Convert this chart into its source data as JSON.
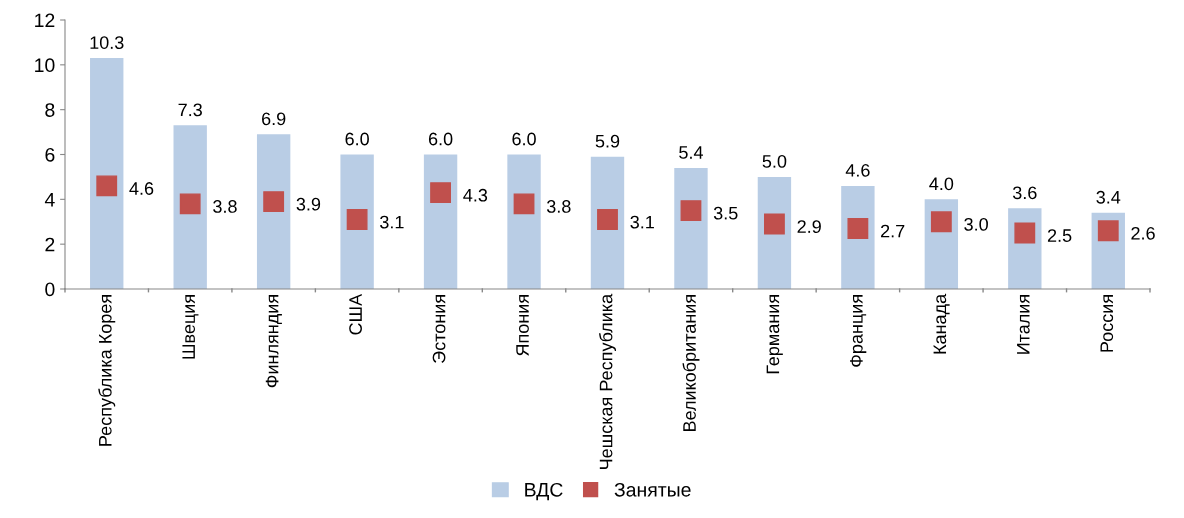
{
  "chart_data": {
    "type": "bar",
    "categories": [
      "Республика Корея",
      "Швеция",
      "Финляндия",
      "США",
      "Эстония",
      "Япония",
      "Чешская Республика",
      "Великобритания",
      "Германия",
      "Франция",
      "Канада",
      "Италия",
      "Россия"
    ],
    "series": [
      {
        "name": "ВДС",
        "color": "#b9cde5",
        "values": [
          10.3,
          7.3,
          6.9,
          6.0,
          6.0,
          6.0,
          5.9,
          5.4,
          5.0,
          4.6,
          4.0,
          3.6,
          3.4
        ],
        "value_labels": [
          "10.3",
          "7.3",
          "6.9",
          "6.0",
          "6.0",
          "6.0",
          "5.9",
          "5.4",
          "5.0",
          "4.6",
          "4.0",
          "3.6",
          "3.4"
        ]
      },
      {
        "name": "Занятые",
        "type": "scatter",
        "marker": "square",
        "color": "#c0504d",
        "values": [
          4.6,
          3.8,
          3.9,
          3.1,
          4.3,
          3.8,
          3.1,
          3.5,
          2.9,
          2.7,
          3.0,
          2.5,
          2.6
        ],
        "value_labels": [
          "4.6",
          "3.8",
          "3.9",
          "3.1",
          "4.3",
          "3.8",
          "3.1",
          "3.5",
          "2.9",
          "2.7",
          "3.0",
          "2.5",
          "2.6"
        ]
      }
    ],
    "ylim": [
      0,
      12
    ],
    "yticks": [
      0,
      2,
      4,
      6,
      8,
      10,
      12
    ],
    "grid": false,
    "legend": "bottom"
  }
}
